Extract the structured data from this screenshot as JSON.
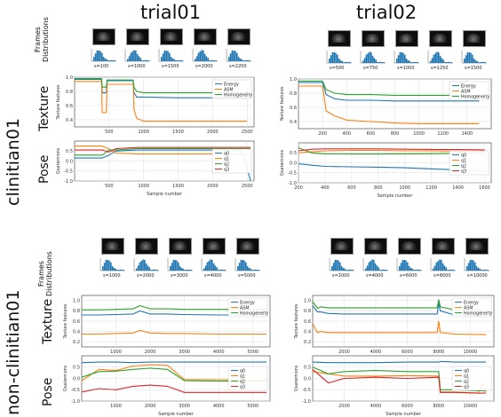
{
  "columns": [
    "trial01",
    "trial02"
  ],
  "rows": [
    "clinitian01",
    "non-clinitian01"
  ],
  "sublabels": {
    "frames": [
      "Frames",
      "Distributions"
    ],
    "texture": "Texture",
    "pose": "Pose"
  },
  "frames": {
    "c1t1": [
      "s=100",
      "s=1000",
      "s=1500",
      "s=2000",
      "s=2200"
    ],
    "c1t2": [
      "s=500",
      "s=750",
      "s=1000",
      "s=1250",
      "s=1500"
    ],
    "n1t1": [
      "s=1000",
      "s=2000",
      "s=3000",
      "s=4000",
      "s=5000"
    ],
    "n1t2": [
      "s=2000",
      "s=4000",
      "s=6000",
      "s=8000",
      "s=10000"
    ]
  },
  "colors": {
    "blue": "#1f77b4",
    "orange": "#ff7f0e",
    "green": "#2ca02c",
    "red": "#d62728"
  },
  "chart_data": [
    {
      "id": "c1t1_tex",
      "type": "line",
      "ylabel": "Texture features",
      "xlim": [
        0,
        2600
      ],
      "ylim": [
        0.3,
        1.0
      ],
      "xticks": [
        500,
        1000,
        1500,
        2000,
        2500
      ],
      "yticks": [
        0.4,
        0.6,
        0.8,
        1.0
      ],
      "yticklabels": [
        "0.4",
        "0.6",
        "0.8",
        "1.0"
      ],
      "legend": "top-right",
      "series": [
        {
          "name": "Energy",
          "color": "#1f77b4",
          "x": [
            0,
            390,
            400,
            460,
            470,
            600,
            850,
            860,
            900,
            1000,
            1500,
            2000,
            2500
          ],
          "y": [
            0.97,
            0.97,
            0.78,
            0.78,
            0.95,
            0.95,
            0.95,
            0.78,
            0.72,
            0.72,
            0.71,
            0.71,
            0.71
          ]
        },
        {
          "name": "ASM",
          "color": "#ff7f0e",
          "x": [
            0,
            390,
            400,
            460,
            470,
            600,
            850,
            860,
            900,
            1000,
            1500,
            2000,
            2500
          ],
          "y": [
            0.94,
            0.94,
            0.5,
            0.5,
            0.9,
            0.9,
            0.9,
            0.55,
            0.42,
            0.38,
            0.38,
            0.38,
            0.38
          ]
        },
        {
          "name": "Homogeneity",
          "color": "#2ca02c",
          "x": [
            0,
            390,
            400,
            460,
            470,
            600,
            850,
            860,
            900,
            1000,
            1500,
            2000,
            2500
          ],
          "y": [
            0.98,
            0.98,
            0.86,
            0.86,
            0.96,
            0.96,
            0.96,
            0.86,
            0.8,
            0.78,
            0.78,
            0.78,
            0.78
          ]
        }
      ]
    },
    {
      "id": "c1t2_tex",
      "type": "line",
      "ylabel": "Texture features",
      "xlim": [
        0,
        1600
      ],
      "ylim": [
        0.3,
        1.0
      ],
      "xticks": [
        200,
        400,
        600,
        800,
        1000,
        1200,
        1400
      ],
      "yticks": [
        0.4,
        0.6,
        0.8,
        1.0
      ],
      "yticklabels": [
        "0.4",
        "0.6",
        "0.8",
        "1.0"
      ],
      "legend": "top-right",
      "series": [
        {
          "name": "Energy",
          "color": "#1f77b4",
          "x": [
            0,
            200,
            230,
            300,
            400,
            600,
            800,
            1000,
            1200,
            1500
          ],
          "y": [
            0.95,
            0.95,
            0.78,
            0.72,
            0.7,
            0.7,
            0.69,
            0.69,
            0.69,
            0.69
          ]
        },
        {
          "name": "ASM",
          "color": "#ff7f0e",
          "x": [
            0,
            200,
            230,
            300,
            400,
            600,
            800,
            1000,
            1200,
            1500
          ],
          "y": [
            0.9,
            0.9,
            0.55,
            0.48,
            0.42,
            0.4,
            0.38,
            0.37,
            0.37,
            0.37
          ]
        },
        {
          "name": "Homogeneity",
          "color": "#2ca02c",
          "x": [
            0,
            200,
            230,
            300,
            400,
            600,
            800,
            1000,
            1200,
            1500
          ],
          "y": [
            0.97,
            0.97,
            0.85,
            0.8,
            0.78,
            0.78,
            0.77,
            0.77,
            0.77,
            0.77
          ]
        }
      ]
    },
    {
      "id": "c1t1_pose",
      "type": "line",
      "ylabel": "Quaternions",
      "xlabel": "Sample number",
      "xlim": [
        0,
        2600
      ],
      "ylim": [
        -1.0,
        1.0
      ],
      "xticks": [
        500,
        1000,
        1500,
        2000,
        2500
      ],
      "yticks": [
        -1.0,
        -0.5,
        0.0,
        0.5
      ],
      "yticklabels": [
        "-1.0",
        "-0.5",
        "0.0",
        "0.5"
      ],
      "legend": "right",
      "series": [
        {
          "name": "q0",
          "color": "#1f77b4",
          "x": [
            0,
            400,
            500,
            600,
            900,
            1500,
            2000,
            2400,
            2450,
            2550
          ],
          "y": [
            0.15,
            0.15,
            0.3,
            0.5,
            0.55,
            0.55,
            0.55,
            0.55,
            0.3,
            -1.0
          ]
        },
        {
          "name": "q1",
          "color": "#ff7f0e",
          "x": [
            0,
            400,
            500,
            600,
            900,
            1500,
            2000,
            2500,
            2550
          ],
          "y": [
            0.75,
            0.75,
            0.6,
            0.4,
            0.35,
            0.35,
            0.35,
            0.35,
            0.3
          ]
        },
        {
          "name": "q2",
          "color": "#2ca02c",
          "x": [
            0,
            400,
            500,
            600,
            900,
            1500,
            2000,
            2500,
            2550
          ],
          "y": [
            0.3,
            0.3,
            0.55,
            0.55,
            0.62,
            0.62,
            0.62,
            0.62,
            0.62
          ]
        },
        {
          "name": "q3",
          "color": "#d62728",
          "x": [
            0,
            400,
            500,
            600,
            900,
            1500,
            2000,
            2500,
            2550
          ],
          "y": [
            0.55,
            0.55,
            0.45,
            0.62,
            0.68,
            0.68,
            0.68,
            0.68,
            0.68
          ]
        }
      ]
    },
    {
      "id": "c1t2_pose",
      "type": "line",
      "ylabel": "Quaternions",
      "xlabel": "Sample number",
      "xlim": [
        200,
        1650
      ],
      "ylim": [
        -1.0,
        1.0
      ],
      "xticks": [
        200,
        400,
        600,
        800,
        1000,
        1200,
        1400,
        1600
      ],
      "yticks": [
        -1.0,
        -0.5,
        0.0,
        0.5
      ],
      "yticklabels": [
        "-1.0",
        "-0.5",
        "0.0",
        "0.5"
      ],
      "legend": "right",
      "series": [
        {
          "name": "q0",
          "color": "#1f77b4",
          "x": [
            200,
            300,
            400,
            600,
            800,
            1000,
            1200,
            1400,
            1600
          ],
          "y": [
            -0.05,
            -0.12,
            -0.18,
            -0.2,
            -0.22,
            -0.25,
            -0.3,
            -0.35,
            -0.4
          ]
        },
        {
          "name": "q1",
          "color": "#ff7f0e",
          "x": [
            200,
            300,
            400,
            600,
            800,
            1000,
            1200,
            1400,
            1600
          ],
          "y": [
            0.5,
            0.55,
            0.6,
            0.62,
            0.62,
            0.6,
            0.6,
            0.58,
            0.58
          ]
        },
        {
          "name": "q2",
          "color": "#2ca02c",
          "x": [
            200,
            300,
            400,
            600,
            800,
            1000,
            1200,
            1400,
            1600
          ],
          "y": [
            0.75,
            0.5,
            0.45,
            0.44,
            0.44,
            0.45,
            0.46,
            0.47,
            0.48
          ]
        },
        {
          "name": "q3",
          "color": "#d62728",
          "x": [
            200,
            300,
            400,
            600,
            800,
            1000,
            1200,
            1400,
            1600
          ],
          "y": [
            0.6,
            0.68,
            0.7,
            0.7,
            0.7,
            0.68,
            0.67,
            0.66,
            0.65
          ]
        }
      ]
    },
    {
      "id": "n1t1_tex",
      "type": "line",
      "ylabel": "Texture features",
      "xlim": [
        0,
        5500
      ],
      "ylim": [
        0.1,
        1.1
      ],
      "xticks": [
        1000,
        2000,
        3000,
        4000,
        5000
      ],
      "yticks": [
        0.2,
        0.4,
        0.6,
        0.8,
        1.0
      ],
      "yticklabels": [
        "0.2",
        "0.4",
        "0.6",
        "0.8",
        "1.0"
      ],
      "legend": "top-right",
      "series": [
        {
          "name": "Energy",
          "color": "#1f77b4",
          "x": [
            0,
            500,
            1000,
            1500,
            1700,
            2000,
            2500,
            3000,
            4000,
            5000,
            5400
          ],
          "y": [
            0.72,
            0.72,
            0.73,
            0.74,
            0.8,
            0.74,
            0.74,
            0.73,
            0.72,
            0.72,
            0.72
          ]
        },
        {
          "name": "ASM",
          "color": "#ff7f0e",
          "x": [
            0,
            500,
            1000,
            1500,
            1700,
            2000,
            2500,
            3000,
            4000,
            5000,
            5400
          ],
          "y": [
            0.35,
            0.35,
            0.36,
            0.37,
            0.42,
            0.37,
            0.36,
            0.36,
            0.35,
            0.35,
            0.35
          ]
        },
        {
          "name": "Homogeneity",
          "color": "#2ca02c",
          "x": [
            0,
            500,
            1000,
            1500,
            1700,
            2000,
            2500,
            3000,
            4000,
            5000,
            5400
          ],
          "y": [
            0.82,
            0.82,
            0.83,
            0.84,
            0.9,
            0.84,
            0.84,
            0.83,
            0.83,
            0.83,
            0.83
          ]
        }
      ]
    },
    {
      "id": "n1t2_tex",
      "type": "line",
      "ylabel": "Texture features",
      "xlim": [
        0,
        11500
      ],
      "ylim": [
        0.1,
        1.1
      ],
      "xticks": [
        2000,
        4000,
        6000,
        8000,
        10000
      ],
      "yticks": [
        0.2,
        0.4,
        0.6,
        0.8,
        1.0
      ],
      "yticklabels": [
        "0.2",
        "0.4",
        "0.6",
        "0.8",
        "1.0"
      ],
      "legend": "top-right",
      "series": [
        {
          "name": "Energy",
          "color": "#1f77b4",
          "x": [
            0,
            300,
            500,
            1000,
            2000,
            4000,
            6000,
            7900,
            8000,
            8100,
            9000,
            11000
          ],
          "y": [
            0.9,
            0.78,
            0.78,
            0.75,
            0.74,
            0.74,
            0.74,
            0.74,
            0.95,
            0.8,
            0.72,
            0.71
          ]
        },
        {
          "name": "ASM",
          "color": "#ff7f0e",
          "x": [
            0,
            300,
            500,
            1000,
            2000,
            4000,
            6000,
            7900,
            8000,
            8100,
            9000,
            11000
          ],
          "y": [
            0.55,
            0.38,
            0.4,
            0.38,
            0.38,
            0.38,
            0.38,
            0.38,
            0.6,
            0.38,
            0.35,
            0.34
          ]
        },
        {
          "name": "Homogeneity",
          "color": "#2ca02c",
          "x": [
            0,
            300,
            500,
            1000,
            2000,
            4000,
            6000,
            7900,
            8000,
            8100,
            9000,
            11000
          ],
          "y": [
            0.98,
            0.85,
            0.88,
            0.86,
            0.86,
            0.86,
            0.86,
            0.86,
            1.02,
            0.88,
            0.82,
            0.82
          ]
        }
      ]
    },
    {
      "id": "n1t1_pose",
      "type": "line",
      "ylabel": "Quaternions",
      "xlabel": "Sample number",
      "xlim": [
        0,
        5500
      ],
      "ylim": [
        -1.0,
        1.0
      ],
      "xticks": [
        1000,
        2000,
        3000,
        4000,
        5000
      ],
      "yticks": [
        -1.0,
        -0.5,
        0.0,
        0.5
      ],
      "yticklabels": [
        "-1.0",
        "-0.5",
        "0.0",
        "0.5"
      ],
      "legend": "right",
      "series": [
        {
          "name": "q0",
          "color": "#1f77b4",
          "x": [
            0,
            500,
            1000,
            1500,
            2000,
            2500,
            3000,
            4000,
            5000,
            5400
          ],
          "y": [
            0.7,
            0.72,
            0.72,
            0.7,
            0.72,
            0.72,
            0.72,
            0.72,
            0.72,
            0.72
          ]
        },
        {
          "name": "q1",
          "color": "#ff7f0e",
          "x": [
            0,
            500,
            1000,
            1500,
            2000,
            2500,
            3000,
            4000,
            5000,
            5400
          ],
          "y": [
            -0.1,
            0.4,
            0.35,
            0.55,
            0.6,
            0.58,
            -0.05,
            -0.06,
            -0.08,
            -0.08
          ]
        },
        {
          "name": "q2",
          "color": "#2ca02c",
          "x": [
            0,
            500,
            1000,
            1500,
            2000,
            2500,
            3000,
            4000,
            5000,
            5400
          ],
          "y": [
            0.05,
            0.3,
            0.32,
            0.4,
            0.45,
            0.4,
            -0.1,
            -0.12,
            -0.12,
            -0.12
          ]
        },
        {
          "name": "q3",
          "color": "#d62728",
          "x": [
            0,
            500,
            1000,
            1500,
            2000,
            2500,
            3000,
            4000,
            5000,
            5400
          ],
          "y": [
            -0.6,
            -0.45,
            -0.5,
            -0.35,
            -0.3,
            -0.35,
            -0.62,
            -0.62,
            -0.62,
            -0.62
          ]
        }
      ]
    },
    {
      "id": "n1t2_pose",
      "type": "line",
      "ylabel": "Quaternions",
      "xlabel": "Sample number",
      "xlim": [
        0,
        11500
      ],
      "ylim": [
        -1.0,
        1.0
      ],
      "xticks": [
        2000,
        4000,
        6000,
        8000,
        10000
      ],
      "yticks": [
        -1.0,
        -0.5,
        0.0,
        0.5
      ],
      "yticklabels": [
        "-1.0",
        "-0.5",
        "0.0",
        "0.5"
      ],
      "legend": "right",
      "series": [
        {
          "name": "q0",
          "color": "#1f77b4",
          "x": [
            0,
            1000,
            2000,
            4000,
            6000,
            8000,
            8100,
            9000,
            10500,
            11000
          ],
          "y": [
            0.72,
            0.7,
            0.7,
            0.7,
            0.72,
            0.72,
            0.75,
            0.72,
            0.72,
            0.72
          ]
        },
        {
          "name": "q1",
          "color": "#ff7f0e",
          "x": [
            0,
            1000,
            2000,
            4000,
            6000,
            8000,
            8100,
            9000,
            10500,
            10800,
            11000
          ],
          "y": [
            0.3,
            0.2,
            0.1,
            0.1,
            0.12,
            0.1,
            -0.6,
            -0.6,
            -0.65,
            -0.2,
            -0.6
          ]
        },
        {
          "name": "q2",
          "color": "#2ca02c",
          "x": [
            0,
            1000,
            2000,
            4000,
            6000,
            8000,
            8100,
            9000,
            10500,
            11000
          ],
          "y": [
            0.5,
            0.2,
            0.3,
            0.35,
            0.3,
            0.3,
            -0.5,
            -0.5,
            -0.55,
            -0.55
          ]
        },
        {
          "name": "q3",
          "color": "#d62728",
          "x": [
            0,
            1000,
            2000,
            4000,
            6000,
            8000,
            8100,
            9000,
            10500,
            11000
          ],
          "y": [
            0.4,
            -0.2,
            0.0,
            0.05,
            0.0,
            0.05,
            -0.62,
            -0.62,
            -0.65,
            -0.65
          ]
        }
      ]
    }
  ]
}
